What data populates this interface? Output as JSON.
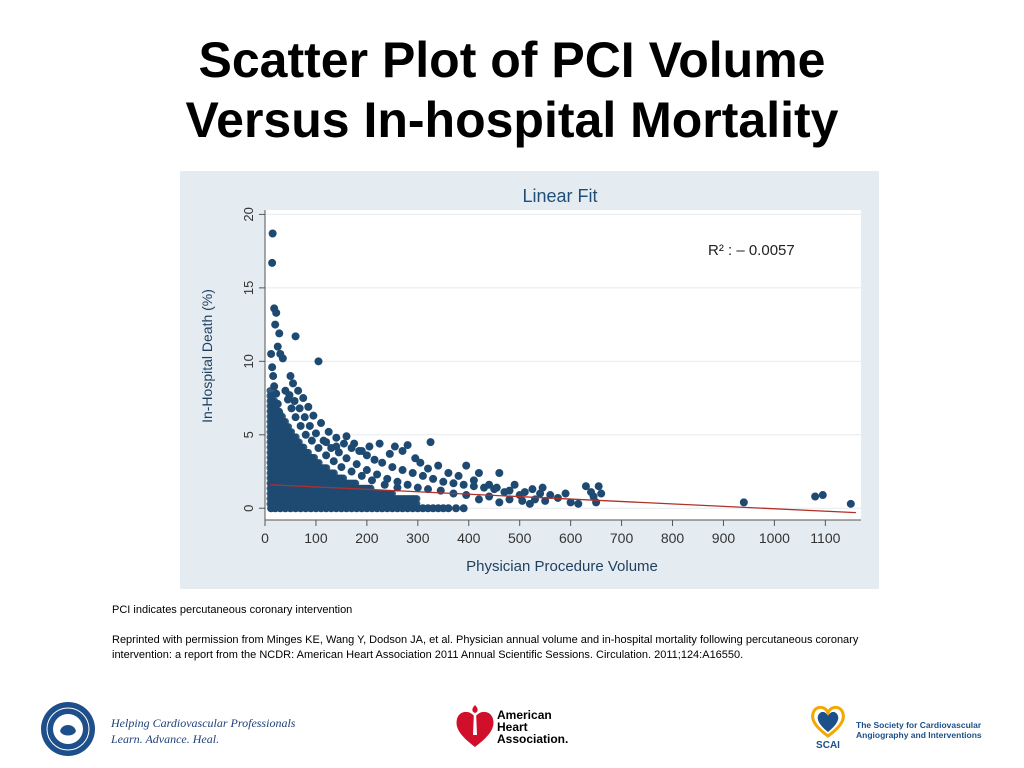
{
  "slide": {
    "title_line1": "Scatter Plot of PCI Volume",
    "title_line2": "Versus In-hospital Mortality"
  },
  "notes": {
    "abbreviation": "PCI indicates percutaneous coronary intervention",
    "citation": "Reprinted with permission from Minges KE, Wang Y, Dodson JA, et al. Physician annual volume and in-hospital mortality following percutaneous coronary intervention: a report from the NCDR: American Heart Association 2011 Annual Scientific Sessions. Circulation. 2011;124:A16550."
  },
  "footer": {
    "acc_tagline_line1": "Helping Cardiovascular Professionals",
    "acc_tagline_line2": "Learn. Advance. Heal.",
    "aha_line1": "American",
    "aha_line2": "Heart",
    "aha_line3": "Association.",
    "scai_line1": "The Society for Cardiovascular",
    "scai_line2": "Angiography and Interventions",
    "scai_abbrev": "SCAI"
  },
  "colors": {
    "point": "#1e4a72",
    "fit_line": "#b0302c",
    "plot_bg": "#ffffff",
    "chart_bg": "#e4ecf1",
    "title_color": "#1f4e79"
  },
  "chart_data": {
    "type": "scatter",
    "title": "Linear Fit",
    "xlabel": "Physician Procedure Volume",
    "ylabel": "In-Hospital Death (%)",
    "annotation": "R² : – 0.0057",
    "xlim": [
      0,
      1170
    ],
    "ylim": [
      -0.8,
      20.3
    ],
    "xticks": [
      "0",
      "100",
      "200",
      "300",
      "400",
      "500",
      "600",
      "700",
      "800",
      "900",
      "1000",
      "1100"
    ],
    "yticks": [
      "0",
      "5",
      "10",
      "15",
      "20"
    ],
    "grid": true,
    "fit_line": {
      "x": [
        10,
        1160
      ],
      "y": [
        1.6,
        -0.3
      ]
    },
    "series": [
      {
        "points": [
          [
            15,
            18.7
          ],
          [
            14,
            16.7
          ],
          [
            18,
            13.6
          ],
          [
            22,
            13.3
          ],
          [
            20,
            12.5
          ],
          [
            28,
            11.9
          ],
          [
            25,
            11.0
          ],
          [
            30,
            10.5
          ],
          [
            35,
            10.2
          ],
          [
            60,
            11.7
          ],
          [
            105,
            10.0
          ],
          [
            12,
            10.5
          ],
          [
            14,
            9.6
          ],
          [
            16,
            9.0
          ],
          [
            18,
            8.3
          ],
          [
            22,
            7.8
          ],
          [
            25,
            7.1
          ],
          [
            28,
            6.5
          ],
          [
            32,
            6.0
          ],
          [
            36,
            5.5
          ],
          [
            40,
            5.1
          ],
          [
            45,
            4.6
          ],
          [
            50,
            4.2
          ],
          [
            56,
            3.8
          ],
          [
            62,
            3.4
          ],
          [
            70,
            3.0
          ],
          [
            80,
            2.6
          ],
          [
            90,
            2.3
          ],
          [
            100,
            2.0
          ],
          [
            115,
            1.7
          ],
          [
            130,
            1.5
          ],
          [
            150,
            1.2
          ],
          [
            170,
            1.0
          ],
          [
            200,
            0.8
          ],
          [
            40,
            8.0
          ],
          [
            45,
            7.4
          ],
          [
            52,
            6.8
          ],
          [
            60,
            6.2
          ],
          [
            70,
            5.6
          ],
          [
            80,
            5.0
          ],
          [
            92,
            4.6
          ],
          [
            105,
            4.1
          ],
          [
            120,
            3.6
          ],
          [
            135,
            3.2
          ],
          [
            150,
            2.8
          ],
          [
            170,
            2.5
          ],
          [
            190,
            2.2
          ],
          [
            210,
            1.9
          ],
          [
            235,
            1.6
          ],
          [
            260,
            1.4
          ],
          [
            50,
            9.0
          ],
          [
            55,
            8.5
          ],
          [
            65,
            8.0
          ],
          [
            75,
            7.5
          ],
          [
            85,
            6.9
          ],
          [
            95,
            6.3
          ],
          [
            110,
            5.8
          ],
          [
            125,
            5.2
          ],
          [
            140,
            4.8
          ],
          [
            155,
            4.4
          ],
          [
            170,
            4.1
          ],
          [
            185,
            3.9
          ],
          [
            200,
            3.6
          ],
          [
            215,
            3.3
          ],
          [
            230,
            3.1
          ],
          [
            250,
            2.8
          ],
          [
            270,
            2.6
          ],
          [
            290,
            2.4
          ],
          [
            310,
            2.2
          ],
          [
            330,
            2.0
          ],
          [
            350,
            1.8
          ],
          [
            370,
            1.7
          ],
          [
            390,
            1.6
          ],
          [
            410,
            1.5
          ],
          [
            430,
            1.4
          ],
          [
            450,
            1.3
          ],
          [
            480,
            1.2
          ],
          [
            510,
            1.1
          ],
          [
            540,
            1.0
          ],
          [
            120,
            4.5
          ],
          [
            140,
            4.2
          ],
          [
            160,
            4.9
          ],
          [
            175,
            4.4
          ],
          [
            190,
            3.9
          ],
          [
            205,
            4.2
          ],
          [
            225,
            4.4
          ],
          [
            245,
            3.7
          ],
          [
            255,
            4.2
          ],
          [
            270,
            3.9
          ],
          [
            280,
            4.3
          ],
          [
            295,
            3.4
          ],
          [
            325,
            4.5
          ],
          [
            305,
            3.1
          ],
          [
            320,
            2.7
          ],
          [
            340,
            2.9
          ],
          [
            360,
            2.4
          ],
          [
            380,
            2.2
          ],
          [
            395,
            2.9
          ],
          [
            410,
            1.9
          ],
          [
            420,
            2.4
          ],
          [
            440,
            1.6
          ],
          [
            455,
            1.4
          ],
          [
            460,
            2.4
          ],
          [
            470,
            1.1
          ],
          [
            490,
            1.6
          ],
          [
            500,
            0.9
          ],
          [
            525,
            1.3
          ],
          [
            530,
            0.6
          ],
          [
            545,
            1.4
          ],
          [
            560,
            0.9
          ],
          [
            590,
            1.0
          ],
          [
            630,
            1.5
          ],
          [
            640,
            1.1
          ],
          [
            645,
            0.8
          ],
          [
            655,
            1.5
          ],
          [
            660,
            1.0
          ],
          [
            940,
            0.4
          ],
          [
            1080,
            0.8
          ],
          [
            1095,
            0.9
          ],
          [
            1150,
            0.3
          ],
          [
            480,
            0.6
          ],
          [
            505,
            0.5
          ],
          [
            520,
            0.3
          ],
          [
            550,
            0.5
          ],
          [
            575,
            0.7
          ],
          [
            600,
            0.4
          ],
          [
            615,
            0.3
          ],
          [
            650,
            0.4
          ],
          [
            460,
            0.4
          ],
          [
            440,
            0.8
          ],
          [
            420,
            0.6
          ],
          [
            395,
            0.9
          ],
          [
            370,
            1.0
          ],
          [
            345,
            1.2
          ],
          [
            320,
            1.3
          ],
          [
            300,
            1.4
          ],
          [
            280,
            1.6
          ],
          [
            260,
            1.8
          ],
          [
            240,
            2.0
          ],
          [
            220,
            2.3
          ],
          [
            200,
            2.6
          ],
          [
            180,
            3.0
          ],
          [
            160,
            3.4
          ],
          [
            145,
            3.8
          ],
          [
            130,
            4.1
          ],
          [
            115,
            4.6
          ],
          [
            100,
            5.1
          ],
          [
            88,
            5.6
          ],
          [
            78,
            6.2
          ],
          [
            68,
            6.8
          ],
          [
            58,
            7.3
          ],
          [
            48,
            7.7
          ],
          [
            12,
            0
          ],
          [
            20,
            0
          ],
          [
            30,
            0
          ],
          [
            40,
            0
          ],
          [
            50,
            0
          ],
          [
            60,
            0
          ],
          [
            70,
            0
          ],
          [
            80,
            0
          ],
          [
            90,
            0
          ],
          [
            100,
            0
          ],
          [
            110,
            0
          ],
          [
            120,
            0
          ],
          [
            130,
            0
          ],
          [
            140,
            0
          ],
          [
            150,
            0
          ],
          [
            160,
            0
          ],
          [
            170,
            0
          ],
          [
            180,
            0
          ],
          [
            190,
            0
          ],
          [
            200,
            0
          ],
          [
            210,
            0
          ],
          [
            220,
            0
          ],
          [
            230,
            0
          ],
          [
            240,
            0
          ],
          [
            250,
            0
          ],
          [
            260,
            0
          ],
          [
            270,
            0
          ],
          [
            280,
            0
          ],
          [
            290,
            0
          ],
          [
            300,
            0
          ],
          [
            310,
            0
          ],
          [
            320,
            0
          ],
          [
            330,
            0
          ],
          [
            340,
            0
          ],
          [
            350,
            0
          ],
          [
            360,
            0
          ],
          [
            375,
            0
          ],
          [
            390,
            0
          ]
        ]
      }
    ]
  }
}
